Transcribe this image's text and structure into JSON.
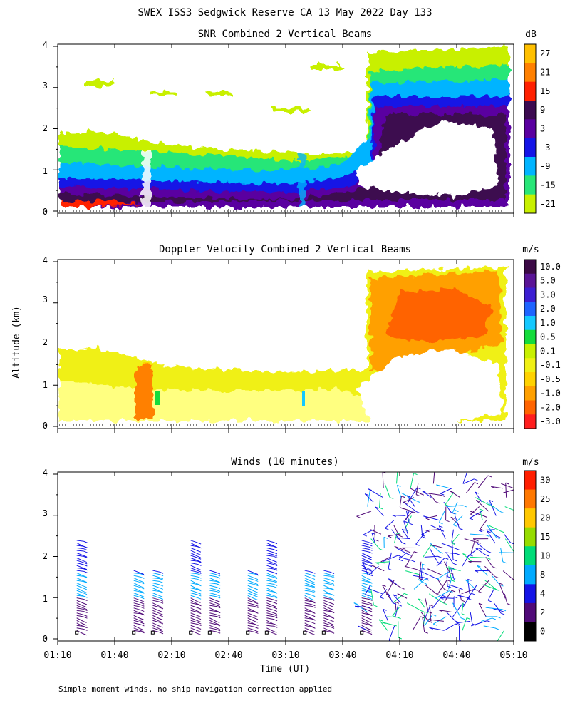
{
  "figure": {
    "title": "SWEX ISS3 Sedgwick Reserve CA  13 May 2022 Day 133",
    "ylabel": "Altitude (km)",
    "xlabel": "Time (UT)",
    "footnote": "Simple moment winds, no ship navigation correction applied",
    "x_tick_labels": [
      "01:10",
      "01:40",
      "02:10",
      "02:40",
      "03:10",
      "03:40",
      "04:10",
      "04:40",
      "05:10"
    ]
  },
  "chart_data": [
    {
      "type": "heatmap",
      "title": "SNR Combined 2 Vertical Beams",
      "colorbar_unit": "dB",
      "colorbar_labels": [
        "27",
        "21",
        "15",
        "9",
        "3",
        "-3",
        "-9",
        "-15",
        "-21"
      ],
      "colorbar_colors": [
        "#ffc000",
        "#ff8000",
        "#ff2000",
        "#3c0a50",
        "#5a00a0",
        "#1414e6",
        "#00b4ff",
        "#28e678",
        "#c8f000"
      ],
      "x_range": [
        "01:10",
        "05:10"
      ],
      "ylim": [
        0,
        4
      ],
      "y_tick_labels": [
        "0",
        "1",
        "2",
        "3",
        "4"
      ],
      "cloud_top_profile": [
        {
          "t": "01:10",
          "top": 1.8
        },
        {
          "t": "01:25",
          "top": 1.8
        },
        {
          "t": "01:40",
          "top": 1.7
        },
        {
          "t": "02:10",
          "top": 1.5
        },
        {
          "t": "02:40",
          "top": 1.3
        },
        {
          "t": "03:10",
          "top": 1.2
        },
        {
          "t": "03:40",
          "top": 1.4
        },
        {
          "t": "03:55",
          "top": 3.9
        },
        {
          "t": "05:10",
          "top": 3.9
        }
      ]
    },
    {
      "type": "heatmap",
      "title": "Doppler Velocity Combined 2 Vertical Beams",
      "colorbar_unit": "m/s",
      "colorbar_labels": [
        "10.0",
        "5.0",
        "3.0",
        "2.0",
        "1.0",
        "0.5",
        "0.1",
        "-0.1",
        "-0.5",
        "-1.0",
        "-2.0",
        "-3.0"
      ],
      "colorbar_colors": [
        "#3c0a46",
        "#5a1496",
        "#3c1ed2",
        "#1e64ff",
        "#14c8ff",
        "#14dc3c",
        "#c8f000",
        "#f0f014",
        "#ffd200",
        "#ffa000",
        "#ff6400",
        "#ff1e1e"
      ],
      "x_range": [
        "01:10",
        "05:10"
      ],
      "ylim": [
        0,
        4
      ],
      "y_tick_labels": [
        "0",
        "1",
        "2",
        "3",
        "4"
      ]
    },
    {
      "type": "scatter",
      "title": "Winds (10 minutes)",
      "colorbar_unit": "m/s",
      "colorbar_labels": [
        "30",
        "25",
        "20",
        "15",
        "10",
        "8",
        "4",
        "2",
        "0"
      ],
      "colorbar_colors": [
        "#ff1e00",
        "#ff7800",
        "#ffc800",
        "#96dc00",
        "#00dc78",
        "#00aaff",
        "#1414e6",
        "#500a78",
        "#000000"
      ],
      "x_range": [
        "01:10",
        "05:10"
      ],
      "ylim": [
        0,
        4
      ],
      "y_tick_labels": [
        "0",
        "1",
        "2",
        "3",
        "4"
      ],
      "profile_times": [
        "01:20",
        "01:50",
        "02:00",
        "02:20",
        "02:30",
        "02:50",
        "03:00",
        "03:20",
        "03:30",
        "03:50",
        "04:00",
        "04:10",
        "04:20",
        "04:30",
        "04:40",
        "04:50",
        "05:00"
      ]
    }
  ]
}
